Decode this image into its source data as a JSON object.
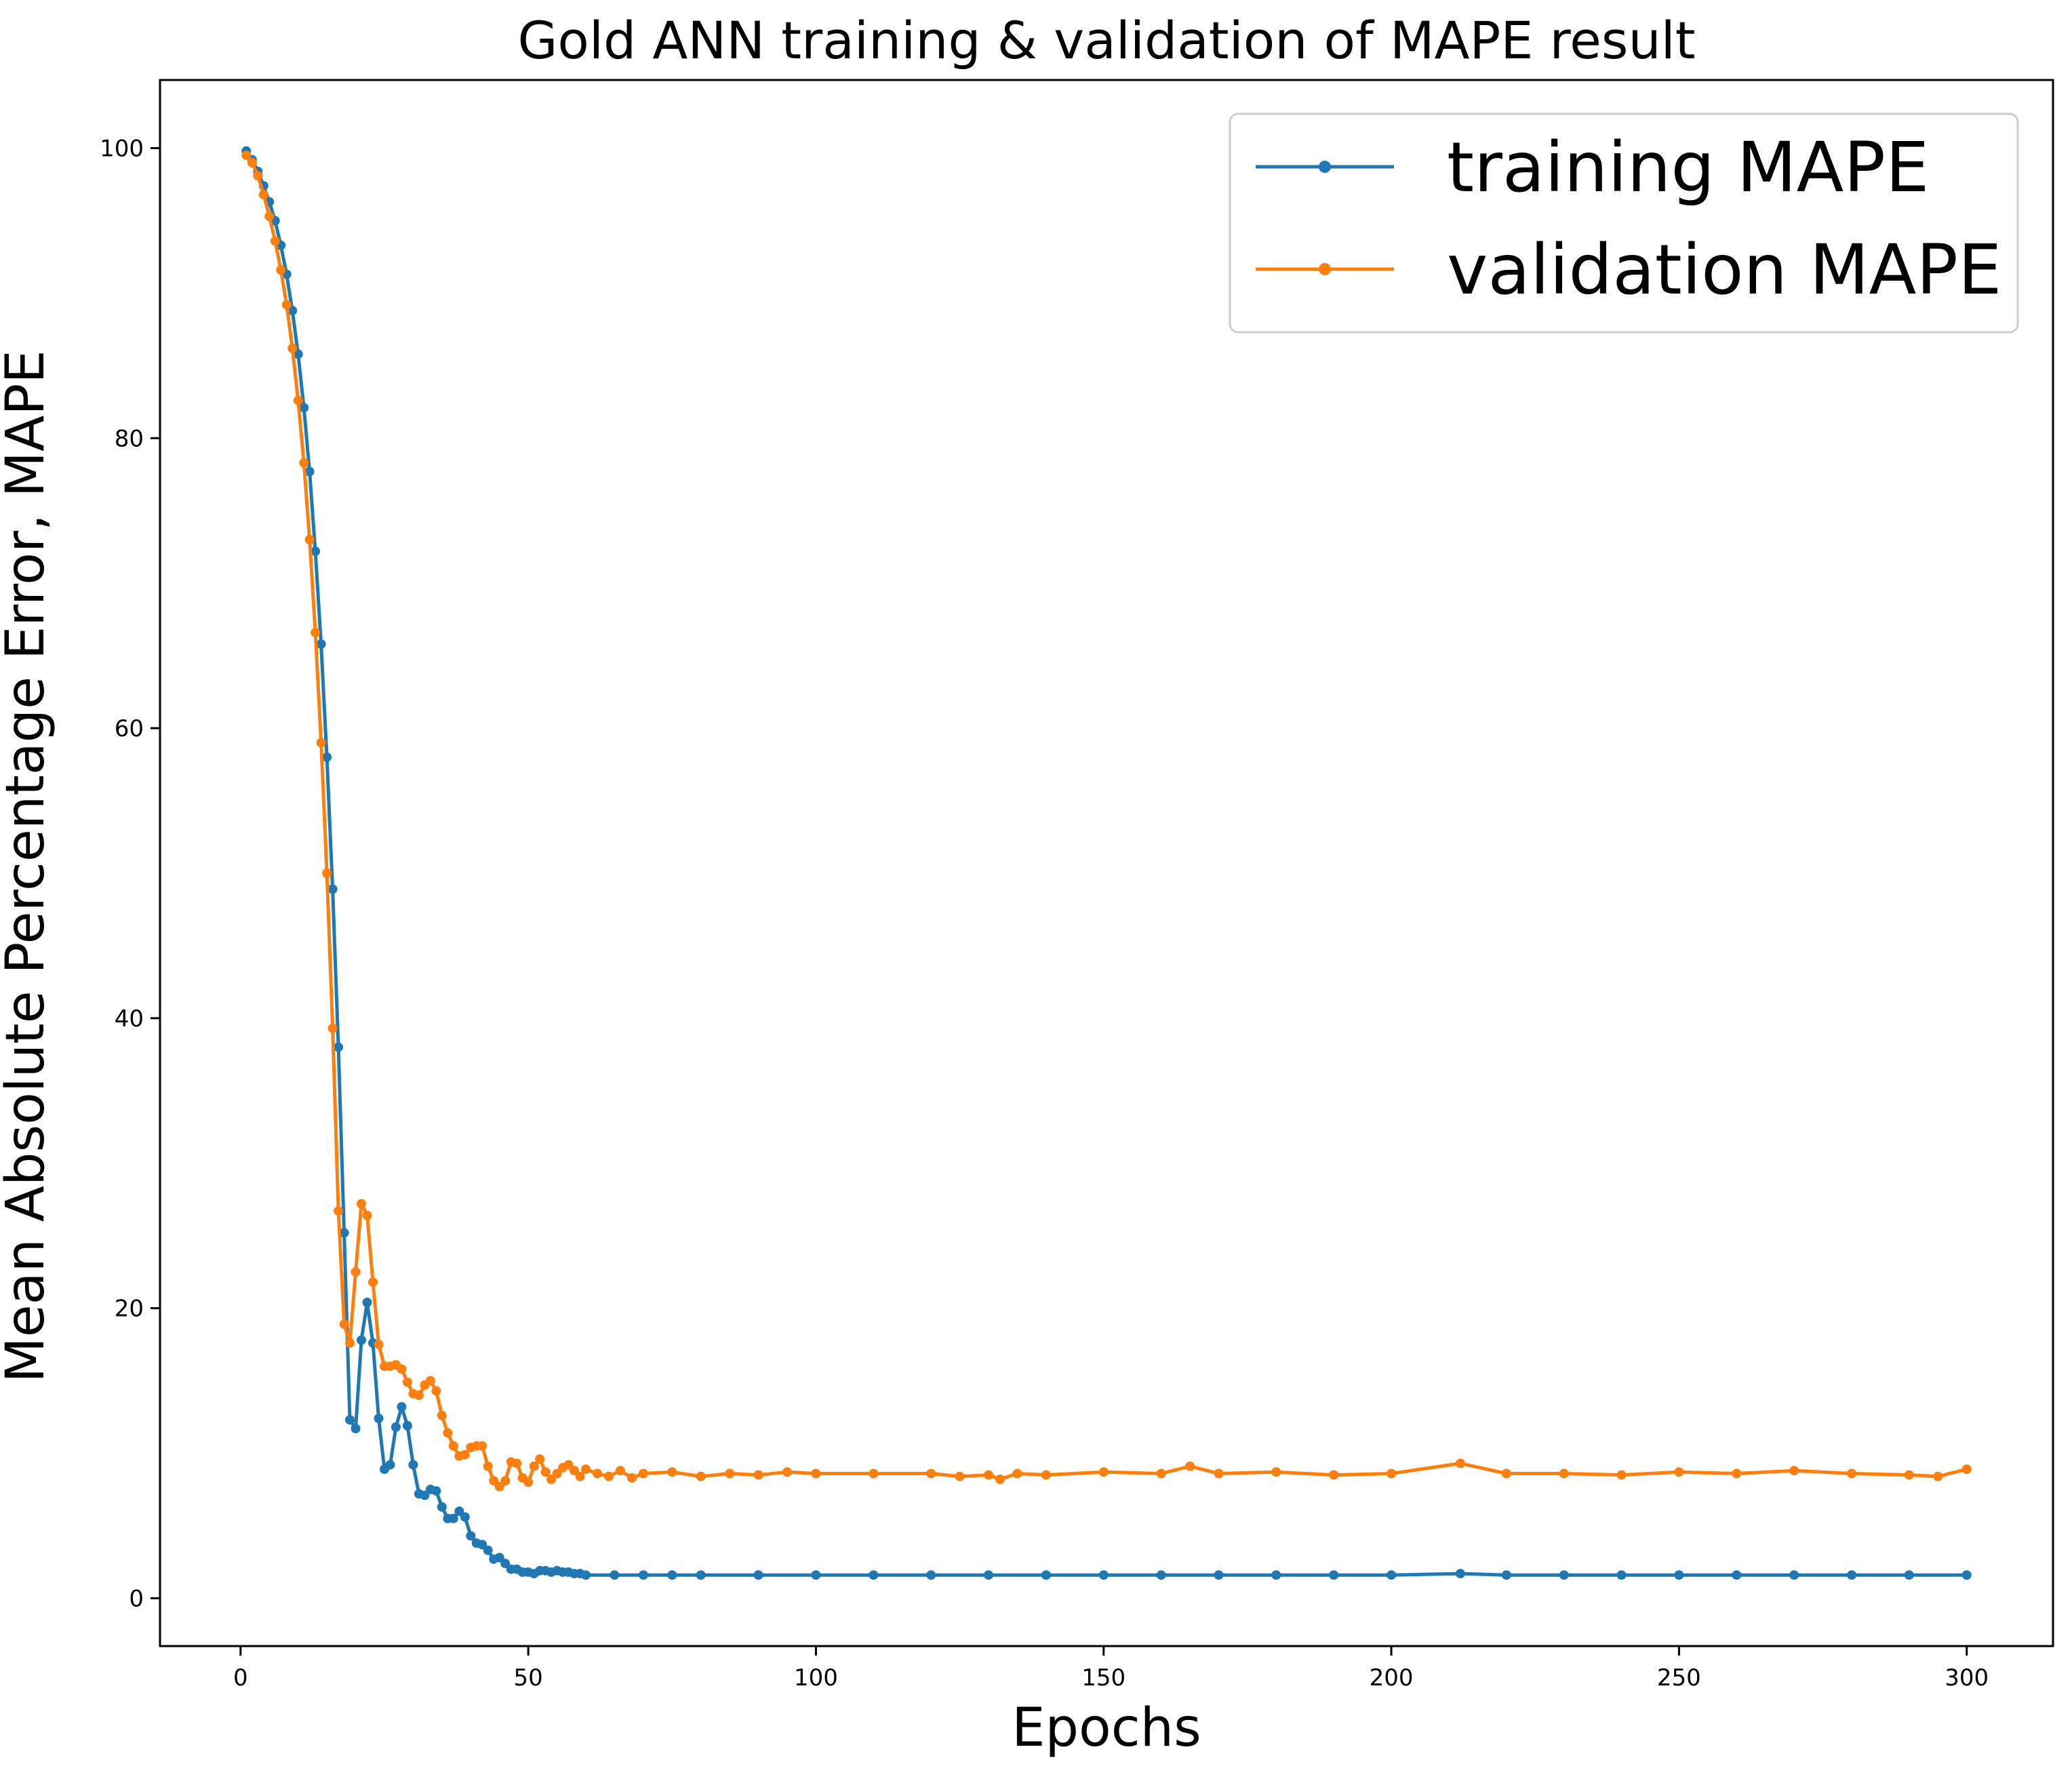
{
  "chart_data": {
    "type": "line",
    "title": "Gold ANN training & validation of MAPE result",
    "xlabel": "Epochs",
    "ylabel": "Mean Absolute Percentage Error, MAPE",
    "xlim": [
      -14,
      315
    ],
    "ylim": [
      -3.3,
      104.7
    ],
    "xticks": [
      0,
      50,
      100,
      150,
      200,
      250,
      300
    ],
    "yticks": [
      0,
      20,
      40,
      60,
      80,
      100
    ],
    "grid": false,
    "legend_position": "top-right",
    "series": [
      {
        "name": "training MAPE",
        "color": "#1f77b4",
        "marker": "circle",
        "x": [
          1,
          2,
          3,
          4,
          5,
          6,
          7,
          8,
          9,
          10,
          11,
          12,
          13,
          14,
          15,
          16,
          17,
          18,
          19,
          20,
          21,
          22,
          23,
          24,
          25,
          26,
          27,
          28,
          29,
          30,
          31,
          32,
          33,
          34,
          35,
          36,
          37,
          38,
          39,
          40,
          41,
          42,
          43,
          44,
          45,
          46,
          47,
          48,
          49,
          50,
          51,
          52,
          53,
          54,
          55,
          56,
          57,
          58,
          59,
          60,
          65,
          70,
          75,
          80,
          90,
          100,
          110,
          120,
          130,
          140,
          150,
          160,
          170,
          180,
          190,
          200,
          212,
          220,
          230,
          240,
          250,
          260,
          270,
          280,
          290,
          300
        ],
        "values": [
          99.8,
          99.2,
          98.4,
          97.4,
          96.3,
          95.0,
          93.3,
          91.3,
          88.8,
          85.8,
          82.1,
          77.7,
          72.2,
          65.8,
          58.0,
          48.9,
          38.0,
          25.2,
          12.3,
          11.7,
          17.8,
          20.4,
          17.6,
          12.4,
          8.9,
          9.2,
          11.8,
          13.2,
          11.9,
          9.2,
          7.2,
          7.1,
          7.5,
          7.4,
          6.3,
          5.5,
          5.5,
          6.0,
          5.6,
          4.3,
          3.8,
          3.7,
          3.3,
          2.7,
          2.8,
          2.4,
          2.0,
          2.0,
          1.8,
          1.8,
          1.7,
          1.9,
          1.9,
          1.8,
          1.9,
          1.8,
          1.8,
          1.7,
          1.7,
          1.6,
          1.6,
          1.6,
          1.6,
          1.6,
          1.6,
          1.6,
          1.6,
          1.6,
          1.6,
          1.6,
          1.6,
          1.6,
          1.6,
          1.6,
          1.6,
          1.6,
          1.7,
          1.6,
          1.6,
          1.6,
          1.6,
          1.6,
          1.6,
          1.6,
          1.6,
          1.6
        ]
      },
      {
        "name": "validation MAPE",
        "color": "#ff7f0e",
        "marker": "circle",
        "x": [
          1,
          2,
          3,
          4,
          5,
          6,
          7,
          8,
          9,
          10,
          11,
          12,
          13,
          14,
          15,
          16,
          17,
          18,
          19,
          20,
          21,
          22,
          23,
          24,
          25,
          26,
          27,
          28,
          29,
          30,
          31,
          32,
          33,
          34,
          35,
          36,
          37,
          38,
          39,
          40,
          41,
          42,
          43,
          44,
          45,
          46,
          47,
          48,
          49,
          50,
          51,
          52,
          53,
          54,
          55,
          56,
          57,
          58,
          59,
          60,
          62,
          64,
          66,
          68,
          70,
          75,
          80,
          85,
          90,
          95,
          100,
          110,
          120,
          125,
          130,
          132,
          135,
          140,
          150,
          160,
          165,
          170,
          180,
          190,
          200,
          212,
          220,
          230,
          240,
          250,
          260,
          270,
          280,
          290,
          295,
          300
        ],
        "values": [
          99.5,
          99.0,
          98.1,
          96.8,
          95.3,
          93.6,
          91.6,
          89.2,
          86.2,
          82.6,
          78.3,
          73.0,
          66.6,
          59.0,
          50.0,
          39.3,
          26.7,
          18.9,
          17.6,
          22.5,
          27.2,
          26.4,
          21.8,
          17.5,
          16.0,
          16.0,
          16.1,
          15.8,
          14.9,
          14.1,
          14.0,
          14.7,
          15.0,
          14.3,
          12.6,
          11.4,
          10.5,
          9.8,
          9.9,
          10.4,
          10.5,
          10.5,
          9.1,
          8.1,
          7.7,
          8.1,
          9.4,
          9.3,
          8.3,
          8.0,
          9.1,
          9.6,
          8.7,
          8.2,
          8.6,
          9.0,
          9.2,
          8.8,
          8.4,
          8.9,
          8.6,
          8.4,
          8.8,
          8.3,
          8.6,
          8.7,
          8.4,
          8.6,
          8.5,
          8.7,
          8.6,
          8.6,
          8.6,
          8.4,
          8.5,
          8.2,
          8.6,
          8.5,
          8.7,
          8.6,
          9.1,
          8.6,
          8.7,
          8.5,
          8.6,
          9.3,
          8.6,
          8.6,
          8.5,
          8.7,
          8.6,
          8.8,
          8.6,
          8.5,
          8.4,
          8.9
        ]
      }
    ]
  }
}
